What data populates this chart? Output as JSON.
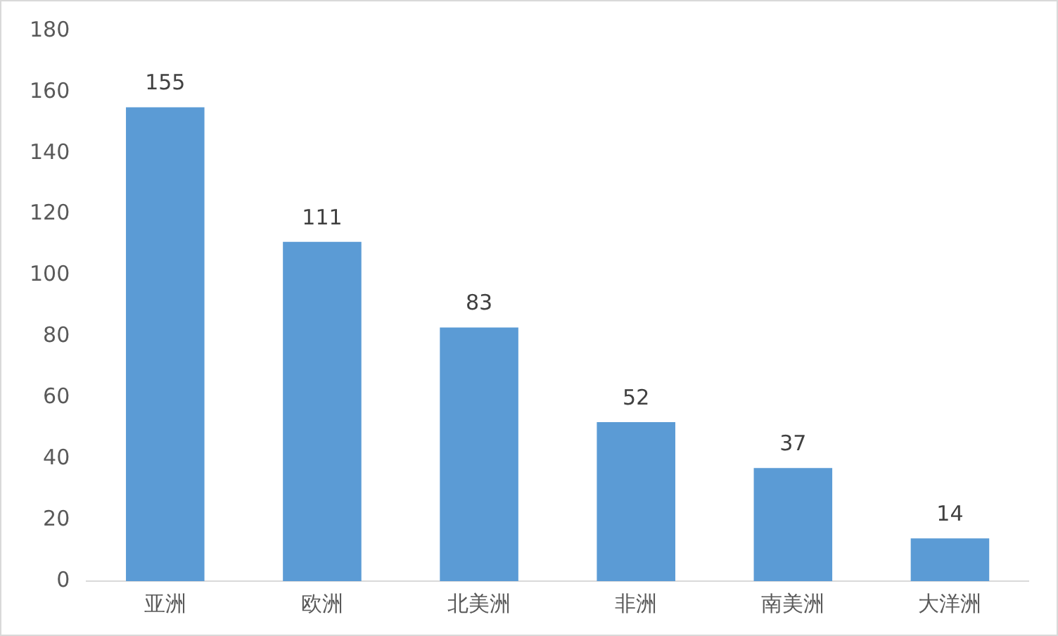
{
  "chart_data": {
    "type": "bar",
    "categories": [
      "亚洲",
      "欧洲",
      "北美洲",
      "非洲",
      "南美洲",
      "大洋洲"
    ],
    "values": [
      155,
      111,
      83,
      52,
      37,
      14
    ],
    "color": "#5b9bd5",
    "ylim": [
      0,
      180
    ],
    "yticks": [
      0,
      20,
      40,
      60,
      80,
      100,
      120,
      140,
      160,
      180
    ],
    "grid": false,
    "legend": false,
    "data_labels": true
  }
}
